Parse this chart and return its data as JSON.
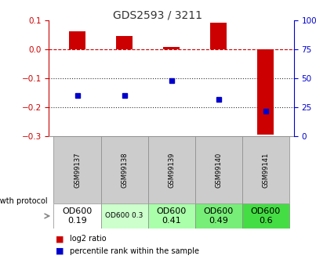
{
  "title": "GDS2593 / 3211",
  "samples": [
    "GSM99137",
    "GSM99138",
    "GSM99139",
    "GSM99140",
    "GSM99141"
  ],
  "log2_ratio": [
    0.063,
    0.047,
    0.008,
    0.092,
    -0.295
  ],
  "percentile_rank": [
    35,
    35,
    48,
    32,
    22
  ],
  "ylim_left": [
    -0.3,
    0.1
  ],
  "ylim_right": [
    0,
    100
  ],
  "yticks_left": [
    0.1,
    0.0,
    -0.1,
    -0.2,
    -0.3
  ],
  "yticks_right": [
    100,
    75,
    50,
    25,
    0
  ],
  "bar_color": "#cc0000",
  "dot_color": "#0000cc",
  "zero_line_color": "#cc0000",
  "grid_color": "#333333",
  "title_color": "#333333",
  "left_axis_color": "#cc0000",
  "right_axis_color": "#0000cc",
  "protocol_labels": [
    "OD600\n0.19",
    "OD600 0.3",
    "OD600\n0.41",
    "OD600\n0.49",
    "OD600\n0.6"
  ],
  "protocol_colors": [
    "#ffffff",
    "#ccffcc",
    "#aaffaa",
    "#77ee77",
    "#44dd44"
  ],
  "protocol_font_sizes": [
    8,
    6.5,
    8,
    8,
    8
  ],
  "sample_bg_color": "#cccccc",
  "legend_red": "log2 ratio",
  "legend_blue": "percentile rank within the sample",
  "bar_width": 0.35
}
